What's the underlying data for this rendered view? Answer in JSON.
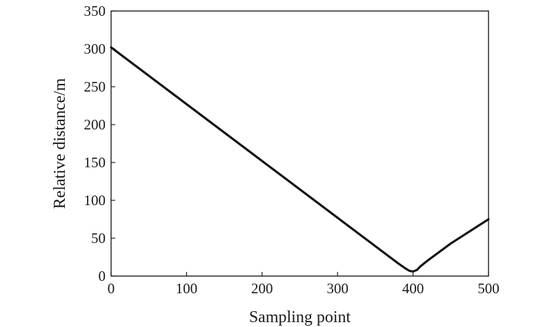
{
  "chart_data": {
    "type": "line",
    "title": "",
    "xlabel": "Sampling point",
    "ylabel": "Relative distance/m",
    "xlim": [
      0,
      500
    ],
    "ylim": [
      0,
      350
    ],
    "xticks": [
      0,
      100,
      200,
      300,
      400,
      500
    ],
    "yticks": [
      0,
      50,
      100,
      150,
      200,
      250,
      300,
      350
    ],
    "grid": false,
    "legend": "none",
    "line_color": "#141414",
    "series": [
      {
        "x": [
          0,
          100,
          200,
          300,
          380,
          390,
          395,
          400,
          405,
          410,
          420,
          450,
          500
        ],
        "y": [
          302,
          227,
          152,
          77,
          17,
          10,
          7,
          6,
          8,
          13,
          21,
          43,
          75
        ]
      }
    ]
  }
}
